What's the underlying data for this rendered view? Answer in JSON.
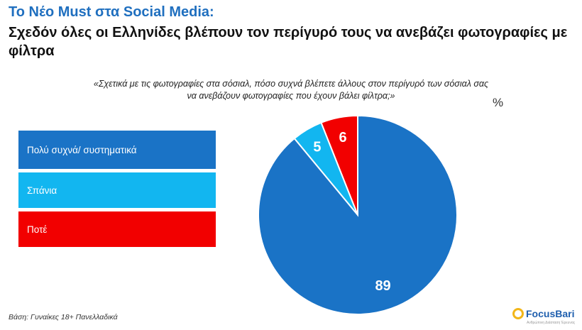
{
  "header": {
    "title": "Το Νέο Must στα Social Media:",
    "subtitle": "Σχεδόν όλες οι Ελληνίδες βλέπουν τον περίγυρό τους να ανεβάζει φωτογραφίες με φίλτρα"
  },
  "question": {
    "line1": "«Σχετικά με τις φωτογραφίες στα σόσιαλ, πόσο συχνά βλέπετε άλλους στον περίγυρό των σόσιαλ σας",
    "line2": "να ανεβάζουν φωτογραφίες που έχουν βάλει φίλτρα;»"
  },
  "unit_label": "%",
  "footnote": "Βάση: Γυναίκες 18+ Πανελλαδικά",
  "logo": {
    "text": "FocusBari",
    "tagline": "Ανθρώπινη Διάσταση Έρευνας"
  },
  "colors": {
    "title_blue": "#1f6fbf",
    "dark_blue": "#1a73c6",
    "light_blue": "#12b6f0",
    "red": "#f20000"
  },
  "chart_data": {
    "type": "pie",
    "slices": [
      {
        "label": "Πολύ συχνά/ συστηματικά",
        "value": 89,
        "color": "#1a73c6"
      },
      {
        "label": "Σπάνια",
        "value": 5,
        "color": "#12b6f0"
      },
      {
        "label": "Ποτέ",
        "value": 6,
        "color": "#f20000"
      }
    ],
    "legend_position": "left"
  }
}
